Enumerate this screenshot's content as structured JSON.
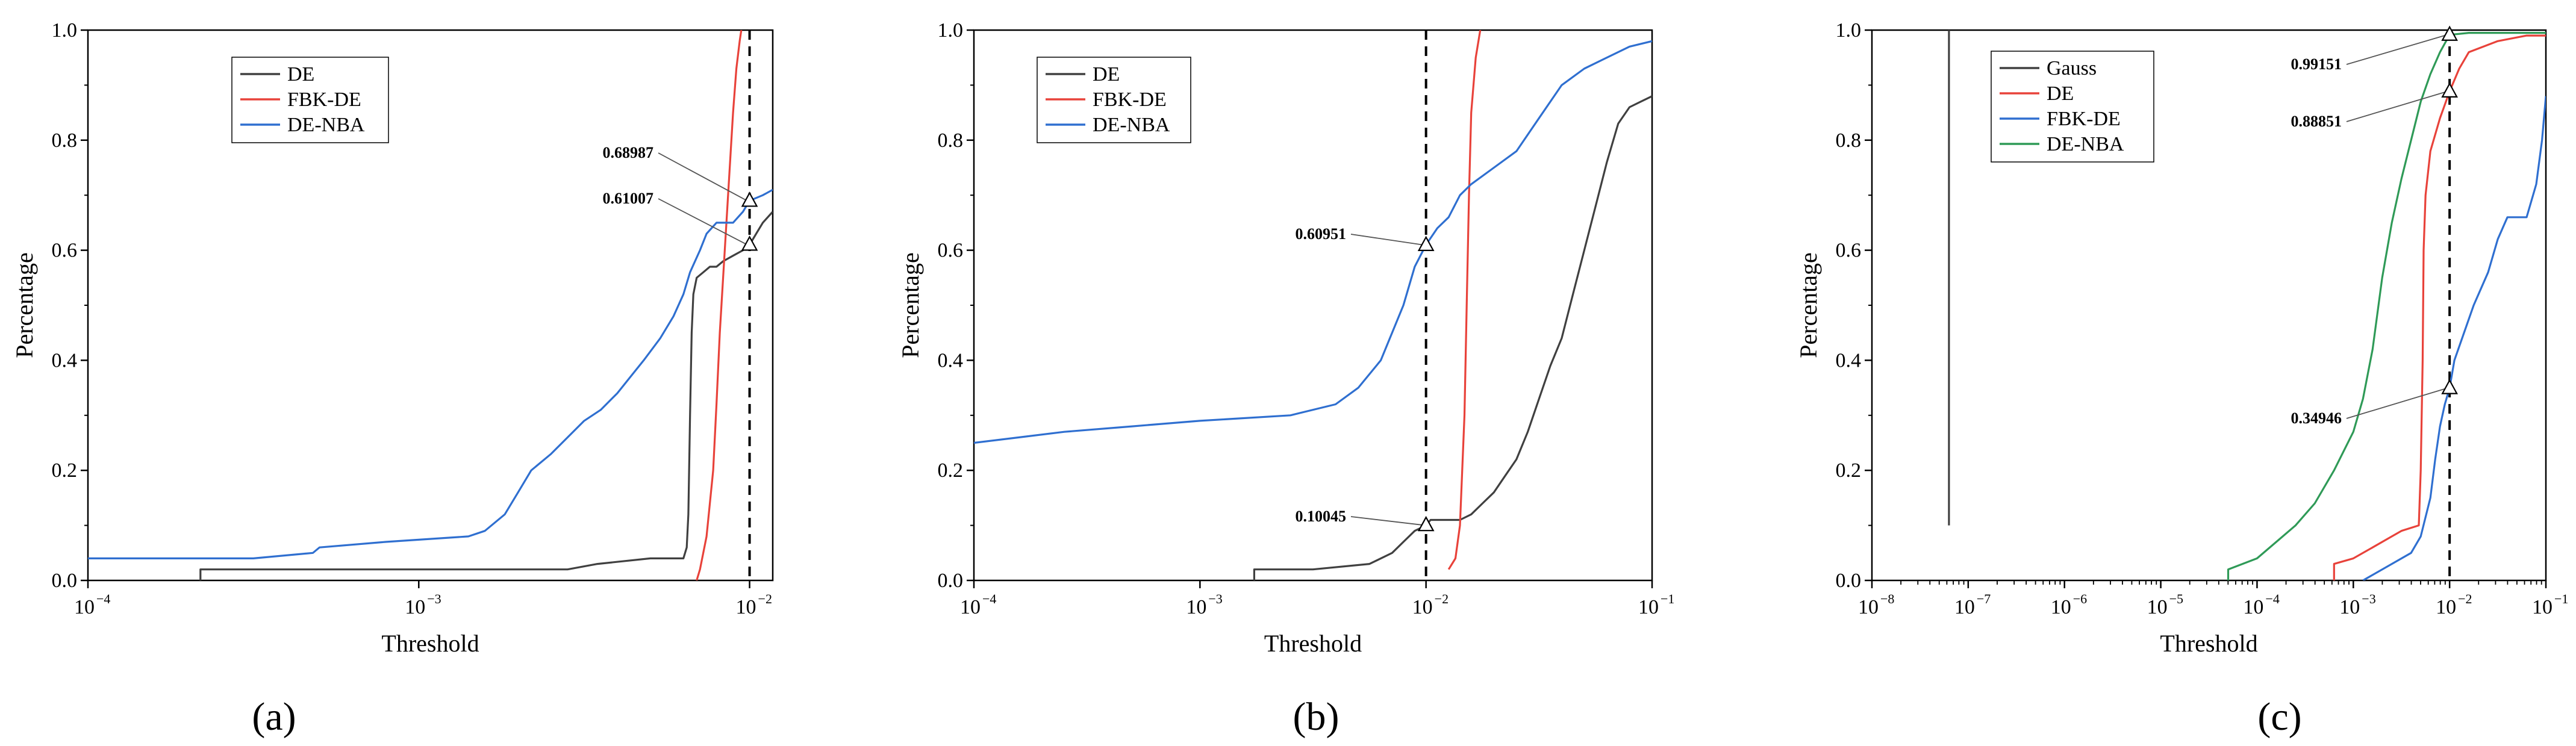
{
  "figure": {
    "panels": [
      "(a)",
      "(b)",
      "(c)"
    ]
  },
  "chart_data": [
    {
      "type": "line",
      "panel_label": "(a)",
      "xlabel": "Threshold",
      "ylabel": "Percentage",
      "xscale": "log",
      "xlim_exp": [
        -4,
        -1.93
      ],
      "ylim": [
        0,
        1
      ],
      "x_ticks": [
        {
          "base": "10",
          "exp": "−4",
          "value_exp": -4
        },
        {
          "base": "10",
          "exp": "−3",
          "value_exp": -3
        },
        {
          "base": "10",
          "exp": "−2",
          "value_exp": -2
        }
      ],
      "y_ticks": [
        "0.0",
        "0.2",
        "0.4",
        "0.6",
        "0.8",
        "1.0"
      ],
      "minor_ticks": false,
      "reference_line_exp": -2,
      "legend_placement": "top-left",
      "legend": [
        "DE",
        "FBK-DE",
        "DE-NBA"
      ],
      "series": [
        {
          "name": "DE",
          "color": "#404040",
          "points_exp": [
            [
              -3.66,
              0.0
            ],
            [
              -3.66,
              0.02
            ],
            [
              -3.32,
              0.02
            ],
            [
              -2.95,
              0.02
            ],
            [
              -2.55,
              0.02
            ],
            [
              -2.46,
              0.03
            ],
            [
              -2.3,
              0.04
            ],
            [
              -2.2,
              0.04
            ],
            [
              -2.19,
              0.06
            ],
            [
              -2.185,
              0.12
            ],
            [
              -2.18,
              0.3
            ],
            [
              -2.175,
              0.45
            ],
            [
              -2.17,
              0.52
            ],
            [
              -2.16,
              0.55
            ],
            [
              -2.14,
              0.56
            ],
            [
              -2.12,
              0.57
            ],
            [
              -2.1,
              0.57
            ],
            [
              -2.08,
              0.58
            ],
            [
              -2.05,
              0.59
            ],
            [
              -2.02,
              0.6
            ],
            [
              -2.0,
              0.61
            ],
            [
              -1.98,
              0.63
            ],
            [
              -1.96,
              0.65
            ],
            [
              -1.93,
              0.67
            ]
          ]
        },
        {
          "name": "FBK-DE",
          "color": "#e8423a",
          "points_exp": [
            [
              -2.16,
              0.0
            ],
            [
              -2.15,
              0.02
            ],
            [
              -2.13,
              0.08
            ],
            [
              -2.11,
              0.2
            ],
            [
              -2.1,
              0.32
            ],
            [
              -2.09,
              0.45
            ],
            [
              -2.08,
              0.55
            ],
            [
              -2.07,
              0.65
            ],
            [
              -2.06,
              0.75
            ],
            [
              -2.05,
              0.85
            ],
            [
              -2.04,
              0.93
            ],
            [
              -2.03,
              0.98
            ],
            [
              -2.025,
              1.0
            ]
          ]
        },
        {
          "name": "DE-NBA",
          "color": "#2f6fd0",
          "points_exp": [
            [
              -4.0,
              0.04
            ],
            [
              -3.5,
              0.04
            ],
            [
              -3.32,
              0.05
            ],
            [
              -3.3,
              0.06
            ],
            [
              -3.1,
              0.07
            ],
            [
              -2.85,
              0.08
            ],
            [
              -2.8,
              0.09
            ],
            [
              -2.74,
              0.12
            ],
            [
              -2.7,
              0.16
            ],
            [
              -2.66,
              0.2
            ],
            [
              -2.6,
              0.23
            ],
            [
              -2.55,
              0.26
            ],
            [
              -2.5,
              0.29
            ],
            [
              -2.45,
              0.31
            ],
            [
              -2.4,
              0.34
            ],
            [
              -2.36,
              0.37
            ],
            [
              -2.32,
              0.4
            ],
            [
              -2.27,
              0.44
            ],
            [
              -2.23,
              0.48
            ],
            [
              -2.2,
              0.52
            ],
            [
              -2.18,
              0.56
            ],
            [
              -2.15,
              0.6
            ],
            [
              -2.13,
              0.63
            ],
            [
              -2.1,
              0.65
            ],
            [
              -2.05,
              0.65
            ],
            [
              -2.02,
              0.67
            ],
            [
              -2.0,
              0.69
            ],
            [
              -1.96,
              0.7
            ],
            [
              -1.93,
              0.71
            ]
          ]
        }
      ],
      "annotations": [
        {
          "label": "0.68987",
          "x_exp": -2,
          "y": 0.68987
        },
        {
          "label": "0.61007",
          "x_exp": -2,
          "y": 0.61007
        }
      ]
    },
    {
      "type": "line",
      "panel_label": "(b)",
      "xlabel": "Threshold",
      "ylabel": "Percentage",
      "xscale": "log",
      "xlim_exp": [
        -4,
        -1
      ],
      "ylim": [
        0,
        1
      ],
      "x_ticks": [
        {
          "base": "10",
          "exp": "−4",
          "value_exp": -4
        },
        {
          "base": "10",
          "exp": "−3",
          "value_exp": -3
        },
        {
          "base": "10",
          "exp": "−2",
          "value_exp": -2
        },
        {
          "base": "10",
          "exp": "−1",
          "value_exp": -1
        }
      ],
      "y_ticks": [
        "0.0",
        "0.2",
        "0.4",
        "0.6",
        "0.8",
        "1.0"
      ],
      "minor_ticks": false,
      "reference_line_exp": -2,
      "legend_placement": "top-left",
      "legend": [
        "DE",
        "FBK-DE",
        "DE-NBA"
      ],
      "series": [
        {
          "name": "DE",
          "color": "#404040",
          "points_exp": [
            [
              -2.76,
              0.0
            ],
            [
              -2.76,
              0.02
            ],
            [
              -2.5,
              0.02
            ],
            [
              -2.25,
              0.03
            ],
            [
              -2.15,
              0.05
            ],
            [
              -2.1,
              0.07
            ],
            [
              -2.05,
              0.09
            ],
            [
              -2.0,
              0.1
            ],
            [
              -1.98,
              0.11
            ],
            [
              -1.85,
              0.11
            ],
            [
              -1.8,
              0.12
            ],
            [
              -1.75,
              0.14
            ],
            [
              -1.7,
              0.16
            ],
            [
              -1.65,
              0.19
            ],
            [
              -1.6,
              0.22
            ],
            [
              -1.55,
              0.27
            ],
            [
              -1.5,
              0.33
            ],
            [
              -1.45,
              0.39
            ],
            [
              -1.4,
              0.44
            ],
            [
              -1.35,
              0.52
            ],
            [
              -1.3,
              0.6
            ],
            [
              -1.25,
              0.68
            ],
            [
              -1.2,
              0.76
            ],
            [
              -1.15,
              0.83
            ],
            [
              -1.1,
              0.86
            ],
            [
              -1.05,
              0.87
            ],
            [
              -1.0,
              0.88
            ]
          ]
        },
        {
          "name": "FBK-DE",
          "color": "#e8423a",
          "points_exp": [
            [
              -1.9,
              0.02
            ],
            [
              -1.87,
              0.04
            ],
            [
              -1.85,
              0.1
            ],
            [
              -1.83,
              0.3
            ],
            [
              -1.82,
              0.5
            ],
            [
              -1.81,
              0.7
            ],
            [
              -1.8,
              0.85
            ],
            [
              -1.78,
              0.95
            ],
            [
              -1.76,
              1.0
            ]
          ]
        },
        {
          "name": "DE-NBA",
          "color": "#2f6fd0",
          "points_exp": [
            [
              -4.0,
              0.25
            ],
            [
              -3.8,
              0.26
            ],
            [
              -3.6,
              0.27
            ],
            [
              -3.3,
              0.28
            ],
            [
              -3.0,
              0.29
            ],
            [
              -2.6,
              0.3
            ],
            [
              -2.4,
              0.32
            ],
            [
              -2.3,
              0.35
            ],
            [
              -2.2,
              0.4
            ],
            [
              -2.1,
              0.5
            ],
            [
              -2.05,
              0.57
            ],
            [
              -2.0,
              0.61
            ],
            [
              -1.95,
              0.64
            ],
            [
              -1.9,
              0.66
            ],
            [
              -1.85,
              0.7
            ],
            [
              -1.8,
              0.72
            ],
            [
              -1.7,
              0.75
            ],
            [
              -1.6,
              0.78
            ],
            [
              -1.5,
              0.84
            ],
            [
              -1.4,
              0.9
            ],
            [
              -1.3,
              0.93
            ],
            [
              -1.2,
              0.95
            ],
            [
              -1.1,
              0.97
            ],
            [
              -1.0,
              0.98
            ]
          ]
        }
      ],
      "annotations": [
        {
          "label": "0.60951",
          "x_exp": -2,
          "y": 0.60951
        },
        {
          "label": "0.10045",
          "x_exp": -2,
          "y": 0.10045
        }
      ]
    },
    {
      "type": "line",
      "panel_label": "(c)",
      "xlabel": "Threshold",
      "ylabel": "Percentage",
      "xscale": "log",
      "xlim_exp": [
        -8,
        -1
      ],
      "ylim": [
        0,
        1
      ],
      "x_ticks": [
        {
          "base": "10",
          "exp": "−8",
          "value_exp": -8
        },
        {
          "base": "10",
          "exp": "−7",
          "value_exp": -7
        },
        {
          "base": "10",
          "exp": "−6",
          "value_exp": -6
        },
        {
          "base": "10",
          "exp": "−5",
          "value_exp": -5
        },
        {
          "base": "10",
          "exp": "−4",
          "value_exp": -4
        },
        {
          "base": "10",
          "exp": "−3",
          "value_exp": -3
        },
        {
          "base": "10",
          "exp": "−2",
          "value_exp": -2
        },
        {
          "base": "10",
          "exp": "−1",
          "value_exp": -1
        }
      ],
      "y_ticks": [
        "0.0",
        "0.2",
        "0.4",
        "0.6",
        "0.8",
        "1.0"
      ],
      "minor_ticks": true,
      "reference_line_exp": -2,
      "legend_placement": "top-left",
      "legend": [
        "Gauss",
        "DE",
        "FBK-DE",
        "DE-NBA"
      ],
      "series": [
        {
          "name": "Gauss",
          "color": "#404040",
          "points_exp": [
            [
              -7.2,
              0.1
            ],
            [
              -7.2,
              1.0
            ]
          ]
        },
        {
          "name": "DE",
          "color": "#e8423a",
          "points_exp": [
            [
              -3.2,
              0.0
            ],
            [
              -3.2,
              0.03
            ],
            [
              -3.0,
              0.04
            ],
            [
              -2.8,
              0.06
            ],
            [
              -2.6,
              0.08
            ],
            [
              -2.5,
              0.09
            ],
            [
              -2.32,
              0.1
            ],
            [
              -2.3,
              0.2
            ],
            [
              -2.28,
              0.4
            ],
            [
              -2.27,
              0.6
            ],
            [
              -2.25,
              0.7
            ],
            [
              -2.2,
              0.78
            ],
            [
              -2.1,
              0.84
            ],
            [
              -2.0,
              0.88851
            ],
            [
              -1.9,
              0.93
            ],
            [
              -1.8,
              0.96
            ],
            [
              -1.5,
              0.98
            ],
            [
              -1.2,
              0.99
            ],
            [
              -1.0,
              0.99
            ]
          ]
        },
        {
          "name": "FBK-DE",
          "color": "#2f6fd0",
          "points_exp": [
            [
              -2.9,
              0.0
            ],
            [
              -2.8,
              0.01
            ],
            [
              -2.6,
              0.03
            ],
            [
              -2.4,
              0.05
            ],
            [
              -2.3,
              0.08
            ],
            [
              -2.2,
              0.15
            ],
            [
              -2.15,
              0.22
            ],
            [
              -2.1,
              0.28
            ],
            [
              -2.05,
              0.32
            ],
            [
              -2.0,
              0.34946
            ],
            [
              -1.95,
              0.4
            ],
            [
              -1.85,
              0.45
            ],
            [
              -1.75,
              0.5
            ],
            [
              -1.6,
              0.56
            ],
            [
              -1.5,
              0.62
            ],
            [
              -1.4,
              0.66
            ],
            [
              -1.2,
              0.66
            ],
            [
              -1.1,
              0.72
            ],
            [
              -1.04,
              0.8
            ],
            [
              -1.0,
              0.88
            ]
          ]
        },
        {
          "name": "DE-NBA",
          "color": "#2f9a57",
          "points_exp": [
            [
              -4.3,
              0.0
            ],
            [
              -4.3,
              0.02
            ],
            [
              -4.0,
              0.04
            ],
            [
              -3.8,
              0.07
            ],
            [
              -3.6,
              0.1
            ],
            [
              -3.4,
              0.14
            ],
            [
              -3.2,
              0.2
            ],
            [
              -3.0,
              0.27
            ],
            [
              -2.9,
              0.33
            ],
            [
              -2.8,
              0.42
            ],
            [
              -2.7,
              0.55
            ],
            [
              -2.6,
              0.65
            ],
            [
              -2.5,
              0.73
            ],
            [
              -2.4,
              0.8
            ],
            [
              -2.3,
              0.87
            ],
            [
              -2.2,
              0.92
            ],
            [
              -2.1,
              0.96
            ],
            [
              -2.0,
              0.99151
            ],
            [
              -1.8,
              0.995
            ],
            [
              -1.0,
              0.995
            ]
          ]
        }
      ],
      "annotations": [
        {
          "label": "0.99151",
          "x_exp": -2,
          "y": 0.99151
        },
        {
          "label": "0.88851",
          "x_exp": -2,
          "y": 0.88851
        },
        {
          "label": "0.34946",
          "x_exp": -2,
          "y": 0.34946
        }
      ]
    }
  ]
}
